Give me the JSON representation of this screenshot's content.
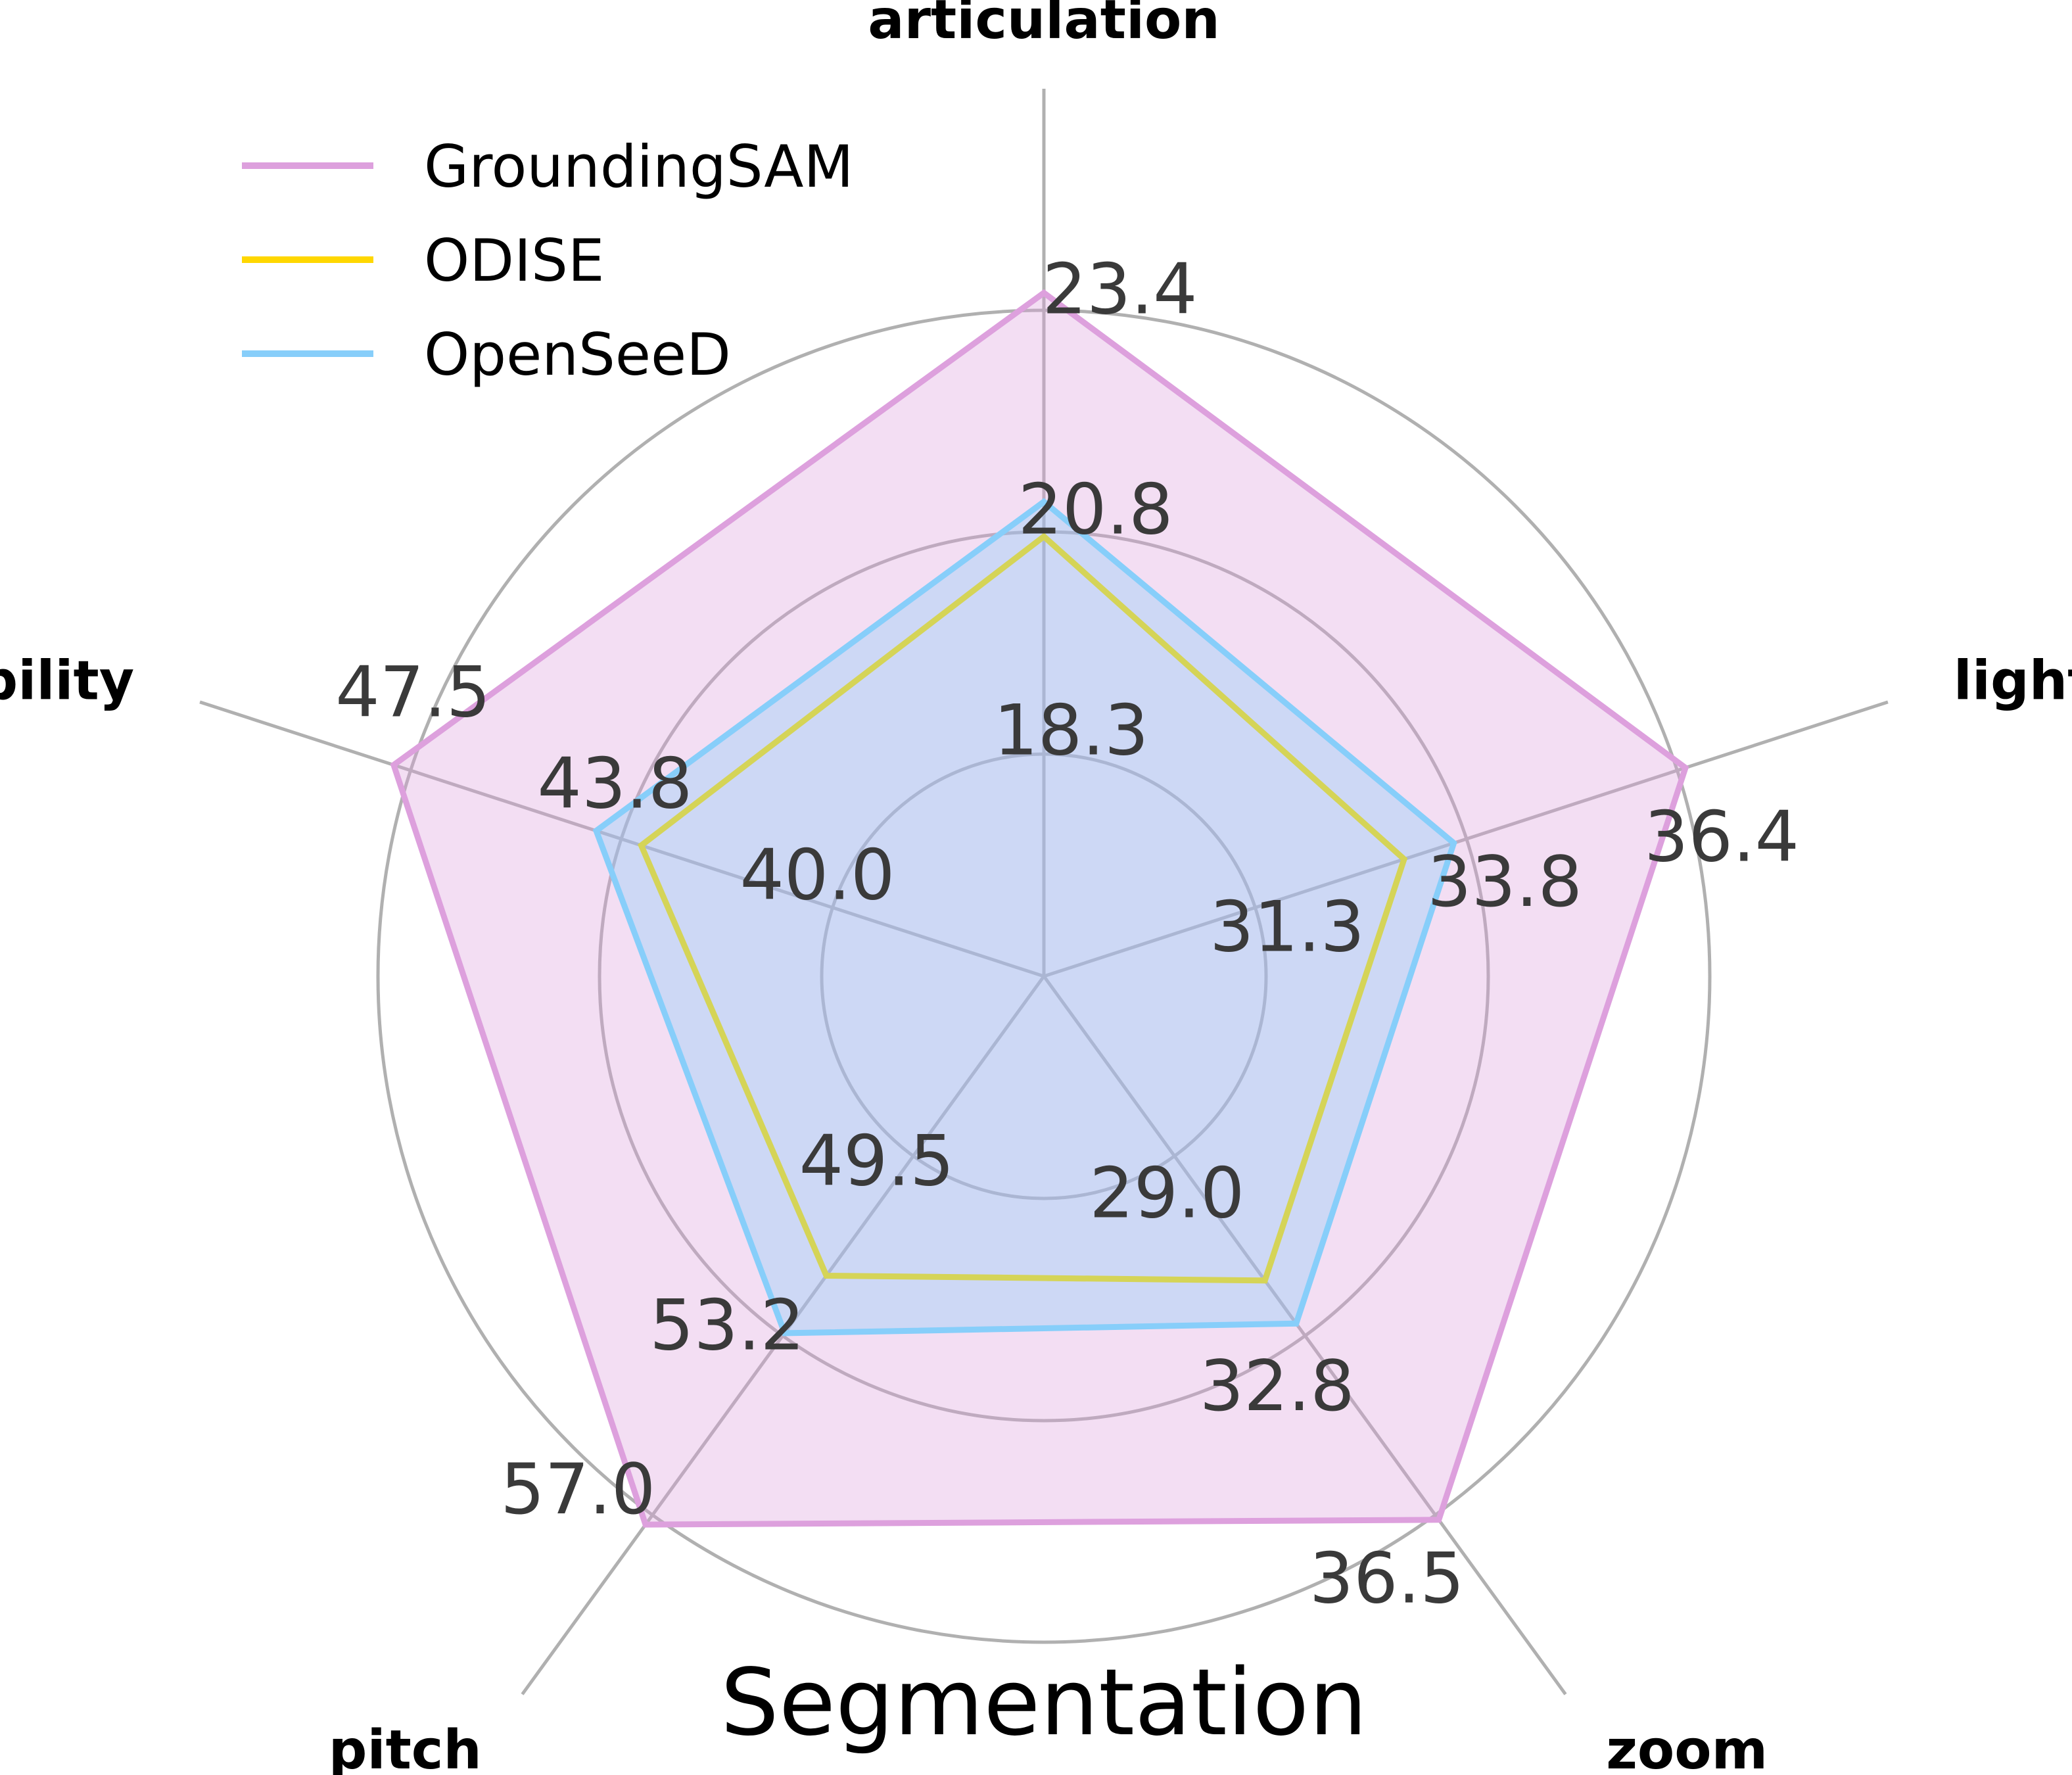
{
  "chart_data": {
    "type": "radar",
    "title": "Segmentation",
    "axes": [
      "articulation",
      "lighting",
      "zoom",
      "pitch",
      "visibility"
    ],
    "tick_labels": [
      [
        "18.3",
        "20.8",
        "23.4"
      ],
      [
        "31.3",
        "33.8",
        "36.4"
      ],
      [
        "29.0",
        "32.8",
        "36.5"
      ],
      [
        "49.5",
        "53.2",
        "57.0"
      ],
      [
        "40.0",
        "43.8",
        "47.5"
      ]
    ],
    "series": [
      {
        "name": "GroundingSAM",
        "color": "#dda0dd",
        "fill": true,
        "values": [
          23.6,
          36.5,
          36.6,
          57.2,
          47.8
        ]
      },
      {
        "name": "ODISE",
        "color": "#ffd700",
        "fill": false,
        "values": [
          20.8,
          33.1,
          31.6,
          52.0,
          43.4
        ]
      },
      {
        "name": "OpenSeeD",
        "color": "#87cefa",
        "fill": true,
        "values": [
          21.2,
          33.7,
          32.5,
          53.2,
          44.2
        ]
      }
    ],
    "legend": {
      "placement": "top-left"
    },
    "grid": true
  }
}
